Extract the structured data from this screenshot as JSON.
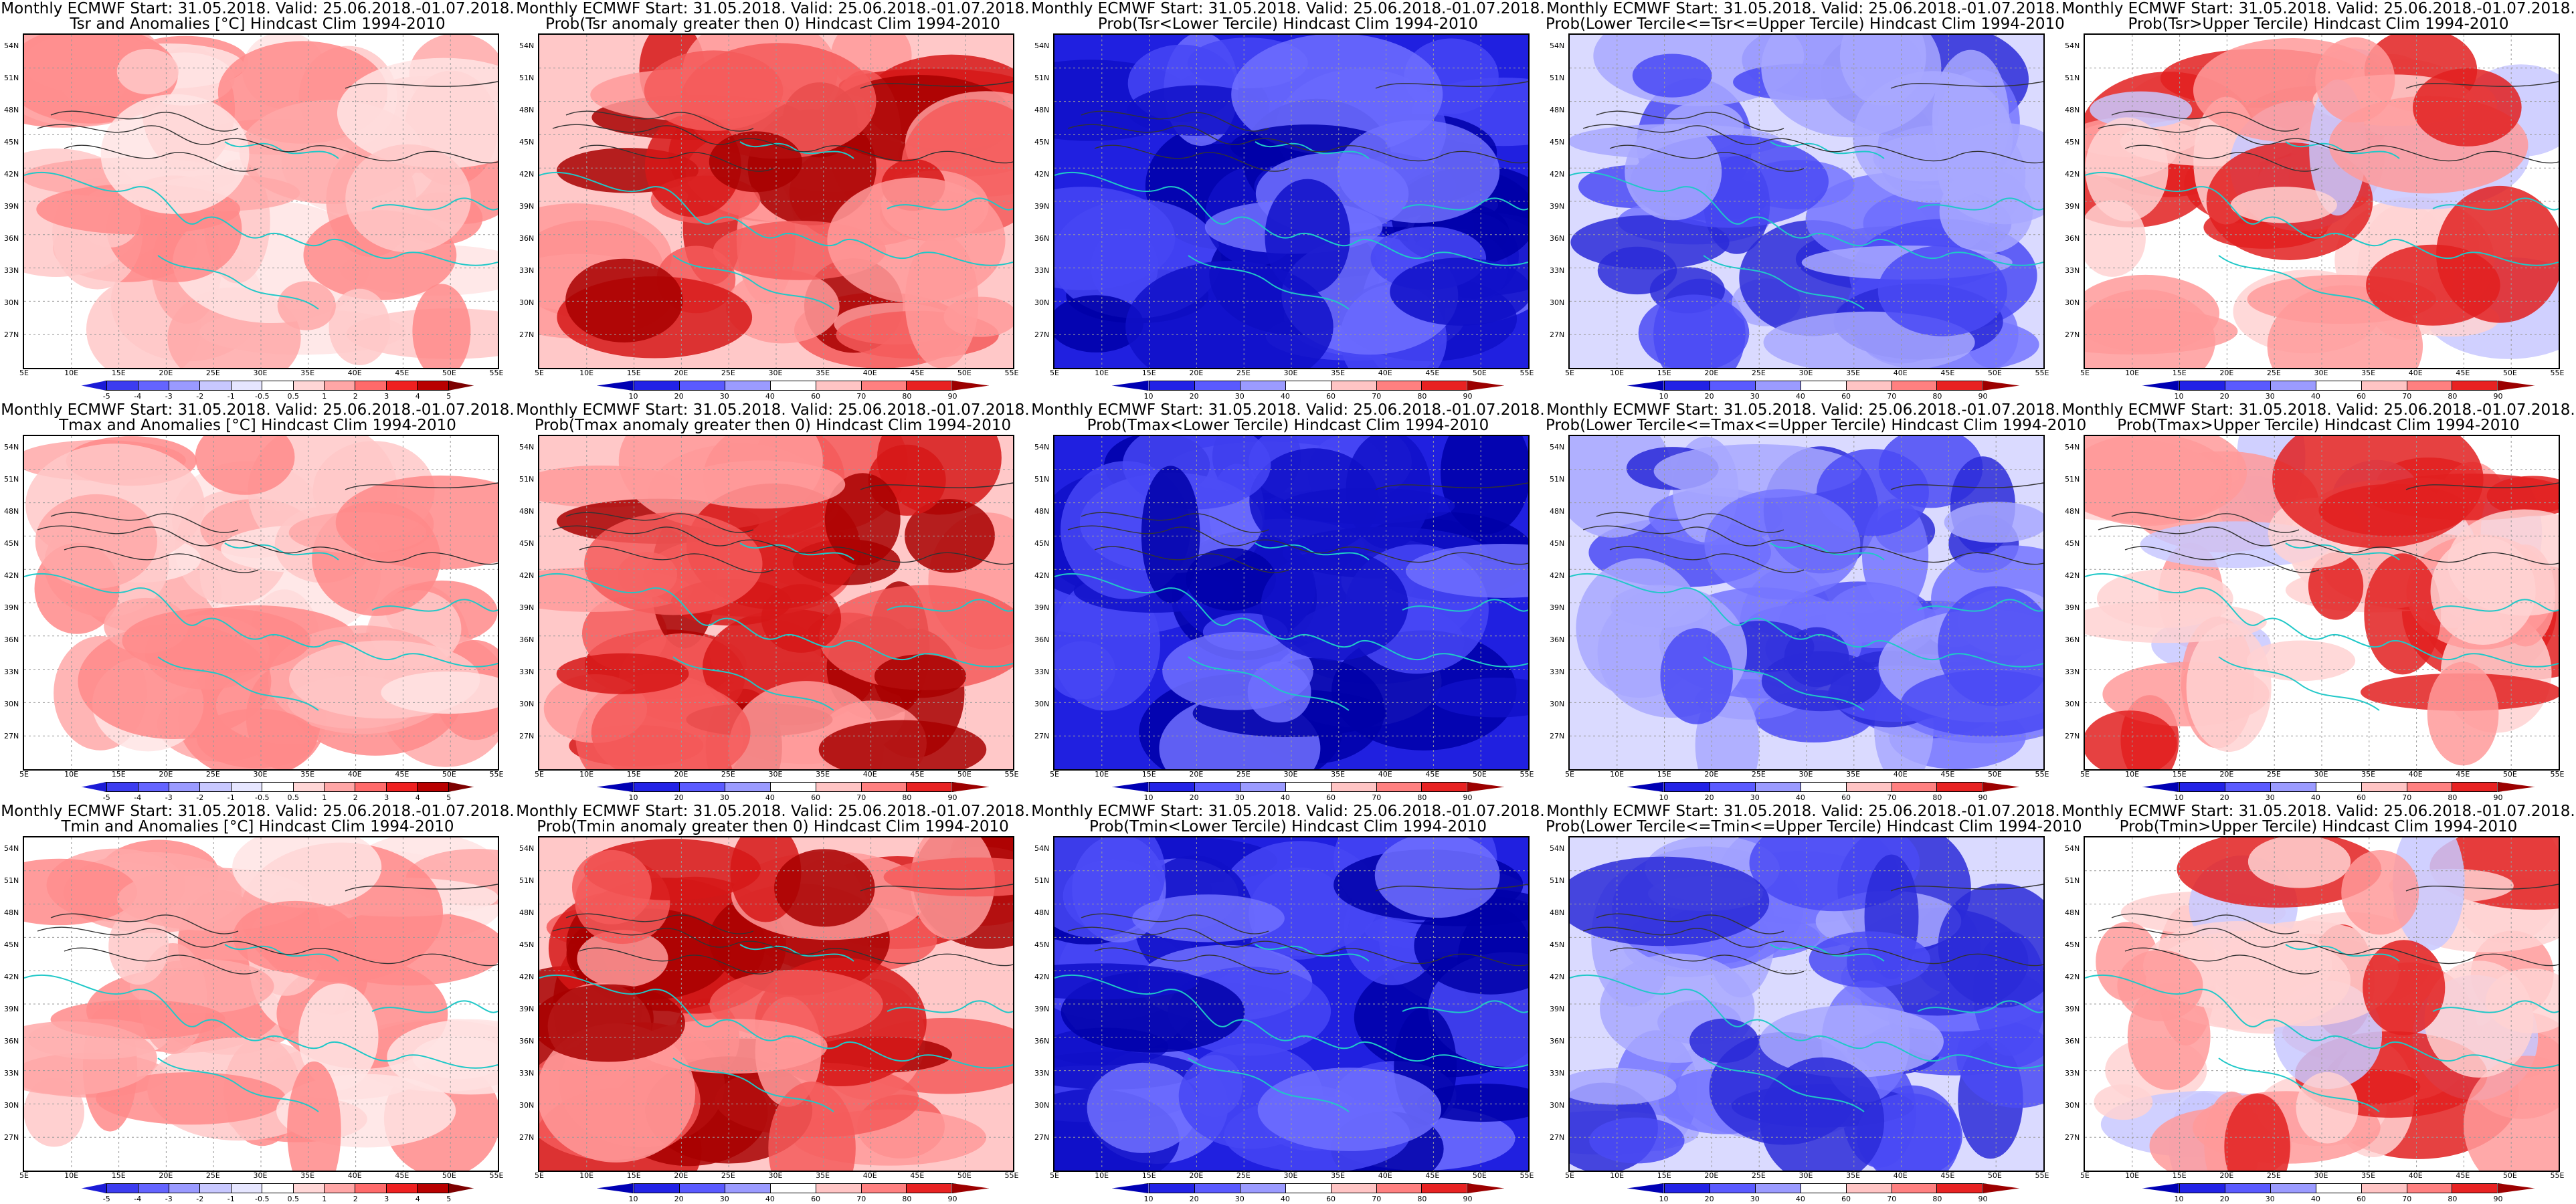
{
  "line1": "Monthly ECMWF Start: 31.05.2018. Valid: 25.06.2018.-01.07.2018.",
  "panels": [
    {
      "title2": "Tsr and Anomalies [°C] Hindcast Clim 1994-2010",
      "scale": "anom",
      "tint": "red"
    },
    {
      "title2": "Prob(Tsr anomaly greater then 0) Hindcast Clim 1994-2010",
      "scale": "prob",
      "tint": "red2"
    },
    {
      "title2": "Prob(Tsr<Lower Tercile) Hindcast Clim 1994-2010",
      "scale": "prob",
      "tint": "blue"
    },
    {
      "title2": "Prob(Lower Tercile<=Tsr<=Upper Tercile) Hindcast Clim 1994-2010",
      "scale": "prob",
      "tint": "blue2"
    },
    {
      "title2": "Prob(Tsr>Upper Tercile) Hindcast Clim 1994-2010",
      "scale": "prob",
      "tint": "mix"
    },
    {
      "title2": "Tmax and Anomalies [°C] Hindcast Clim 1994-2010",
      "scale": "anom",
      "tint": "red"
    },
    {
      "title2": "Prob(Tmax anomaly greater then 0) Hindcast Clim 1994-2010",
      "scale": "prob",
      "tint": "red2"
    },
    {
      "title2": "Prob(Tmax<Lower Tercile) Hindcast Clim 1994-2010",
      "scale": "prob",
      "tint": "blue"
    },
    {
      "title2": "Prob(Lower Tercile<=Tmax<=Upper Tercile) Hindcast Clim 1994-2010",
      "scale": "prob",
      "tint": "blue2"
    },
    {
      "title2": "Prob(Tmax>Upper Tercile) Hindcast Clim 1994-2010",
      "scale": "prob",
      "tint": "mix"
    },
    {
      "title2": "Tmin and Anomalies [°C] Hindcast Clim 1994-2010",
      "scale": "anom",
      "tint": "red"
    },
    {
      "title2": "Prob(Tmin anomaly greater then 0) Hindcast Clim 1994-2010",
      "scale": "prob",
      "tint": "red2"
    },
    {
      "title2": "Prob(Tmin<Lower Tercile) Hindcast Clim 1994-2010",
      "scale": "prob",
      "tint": "blue"
    },
    {
      "title2": "Prob(Lower Tercile<=Tmin<=Upper Tercile) Hindcast Clim 1994-2010",
      "scale": "prob",
      "tint": "blue2"
    },
    {
      "title2": "Prob(Tmin>Upper Tercile) Hindcast Clim 1994-2010",
      "scale": "prob",
      "tint": "mix"
    }
  ],
  "lat_ticks": [
    "54N",
    "51N",
    "48N",
    "45N",
    "42N",
    "39N",
    "36N",
    "33N",
    "30N",
    "27N"
  ],
  "lon_ticks": [
    "5E",
    "10E",
    "15E",
    "20E",
    "25E",
    "30E",
    "35E",
    "40E",
    "45E",
    "50E",
    "55E"
  ],
  "anom_scale": {
    "labels": [
      "-5",
      "-4",
      "-3",
      "-2",
      "-1",
      "-0.5",
      "0.5",
      "1",
      "2",
      "3",
      "4",
      "5"
    ],
    "colors": [
      "#1b1bd6",
      "#3c3cf0",
      "#6464ff",
      "#9a9aff",
      "#c8c8ff",
      "#e6e6ff",
      "#ffffff",
      "#ffd6d6",
      "#ffa6a6",
      "#ff6a6a",
      "#ef2020",
      "#b80000",
      "#7d0000"
    ]
  },
  "prob_scale": {
    "labels": [
      "10",
      "20",
      "30",
      "40",
      "60",
      "70",
      "80",
      "90"
    ],
    "colors": [
      "#0000b4",
      "#2222e6",
      "#5a5aff",
      "#9b9bff",
      "#ffffff",
      "#ffc4c4",
      "#ff8080",
      "#e82222",
      "#9c0000"
    ]
  },
  "tints": {
    "red": [
      "#ffffff",
      "#ffe4e4",
      "#ffc8c8",
      "#ffa8a8",
      "#ff8a8a"
    ],
    "red2": [
      "#ffc8c8",
      "#ff9a9a",
      "#f45a5a",
      "#d61818",
      "#a80000"
    ],
    "blue": [
      "#2020e0",
      "#1010c8",
      "#0000a8",
      "#4646f4",
      "#7070ff"
    ],
    "blue2": [
      "#dadaff",
      "#a8a8ff",
      "#7474ff",
      "#4a4af4",
      "#2a2ad8"
    ],
    "mix": [
      "#ffffff",
      "#ffd2d2",
      "#ff9a9a",
      "#c8c8ff",
      "#e22020"
    ]
  }
}
